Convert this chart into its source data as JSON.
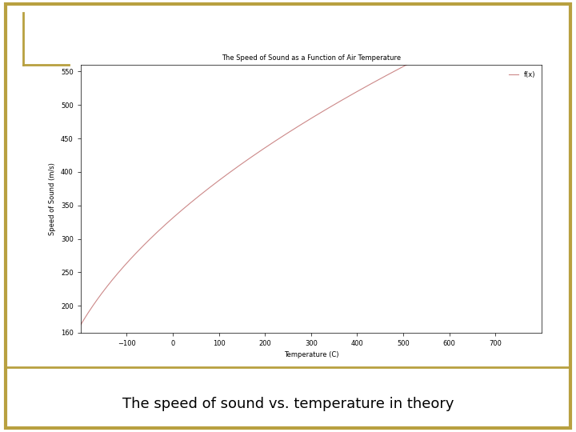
{
  "title": "The Speed of Sound as a Function of Air Temperature",
  "xlabel": "Temperature (C)",
  "ylabel": "Speed of Sound (m/s)",
  "legend_label": "f(x)",
  "t_min": -200,
  "t_max": 800,
  "y_min": 160,
  "y_max": 560,
  "x_ticks": [
    -100,
    0,
    100,
    200,
    300,
    400,
    500,
    600,
    700
  ],
  "y_ticks": [
    160,
    200,
    250,
    300,
    350,
    400,
    450,
    500,
    550
  ],
  "line_color": "#cc8888",
  "slide_bg": "#ffffff",
  "border_color": "#b8a040",
  "caption": "The speed of sound vs. temperature in theory",
  "caption_fontsize": 13,
  "title_fontsize": 6,
  "label_fontsize": 6,
  "tick_fontsize": 6,
  "legend_fontsize": 6
}
